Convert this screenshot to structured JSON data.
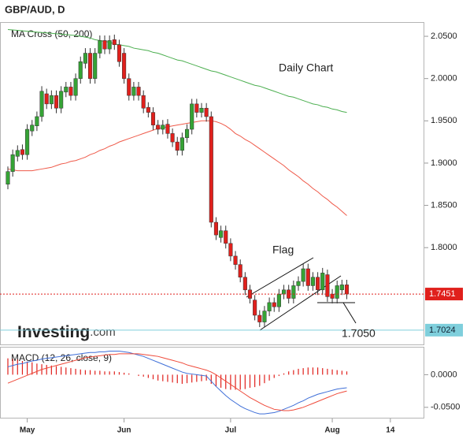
{
  "chart_data": [
    {
      "type": "candlestick",
      "title": "GBP/AUD, D",
      "subtitle": "MA Cross (50, 200)",
      "categories": [
        null,
        null,
        null,
        null,
        "May",
        null,
        null,
        null,
        null,
        null,
        null,
        null,
        null,
        null,
        null,
        null,
        null,
        null,
        null,
        null,
        null,
        null,
        null,
        null,
        "Jun",
        null,
        null,
        null,
        null,
        null,
        null,
        null,
        null,
        null,
        null,
        null,
        null,
        null,
        null,
        null,
        null,
        null,
        null,
        null,
        null,
        null,
        "Jul",
        null,
        null,
        null,
        null,
        null,
        null,
        null,
        null,
        null,
        null,
        null,
        null,
        null,
        null,
        null,
        null,
        null,
        null,
        null,
        null,
        "Aug",
        null,
        null,
        null,
        null,
        null,
        null,
        null,
        null,
        null,
        null,
        null,
        "14",
        null,
        null,
        null,
        null,
        null,
        null
      ],
      "open": [
        1.875,
        1.89,
        1.908,
        1.916,
        1.91,
        1.938,
        1.944,
        1.955,
        1.982,
        1.97,
        1.98,
        1.965,
        1.984,
        1.99,
        1.98,
        2.0,
        2.018,
        2.03,
        2.0,
        2.03,
        2.045,
        2.035,
        2.046,
        2.04,
        2.03,
        2.0,
        1.98,
        1.99,
        1.98,
        1.966,
        1.96,
        1.945,
        1.94,
        1.946,
        1.935,
        1.925,
        1.915,
        1.93,
        1.94,
        1.97,
        1.96,
        1.965,
        1.955,
        1.83,
        1.812,
        1.82,
        1.805,
        1.79,
        1.78,
        1.765,
        1.75,
        1.738,
        1.72,
        1.712,
        1.725,
        1.735,
        1.73,
        1.745,
        1.75,
        1.74,
        1.755,
        1.76,
        1.775,
        1.755,
        1.765,
        1.75,
        1.768,
        1.745,
        1.74,
        1.75,
        1.756,
        null,
        null,
        null,
        null,
        null,
        null,
        null,
        null,
        null,
        null,
        null,
        null,
        null,
        null,
        null
      ],
      "high": [
        1.896,
        1.916,
        1.921,
        1.922,
        1.946,
        1.951,
        1.961,
        1.991,
        1.988,
        1.986,
        1.986,
        1.991,
        1.996,
        1.996,
        2.006,
        2.026,
        2.036,
        2.036,
        2.036,
        2.051,
        2.051,
        2.051,
        2.052,
        2.046,
        2.036,
        2.006,
        1.996,
        1.996,
        1.986,
        1.972,
        1.966,
        1.951,
        1.951,
        1.952,
        1.941,
        1.931,
        1.936,
        1.946,
        1.976,
        1.976,
        1.971,
        1.971,
        1.961,
        1.836,
        1.826,
        1.826,
        1.811,
        1.796,
        1.786,
        1.771,
        1.756,
        1.744,
        1.726,
        1.731,
        1.741,
        1.741,
        1.751,
        1.756,
        1.756,
        1.761,
        1.766,
        1.781,
        1.781,
        1.771,
        1.771,
        1.776,
        1.774,
        1.751,
        1.761,
        1.762,
        1.762,
        null,
        null,
        null,
        null,
        null,
        null,
        null,
        null,
        null,
        null,
        null,
        null,
        null,
        null,
        null
      ],
      "low": [
        1.869,
        1.884,
        1.902,
        1.904,
        1.904,
        1.932,
        1.938,
        1.949,
        1.964,
        1.964,
        1.959,
        1.959,
        1.978,
        1.974,
        1.974,
        1.994,
        2.012,
        1.994,
        1.994,
        2.024,
        2.029,
        2.029,
        2.034,
        2.014,
        1.994,
        1.974,
        1.974,
        1.974,
        1.959,
        1.954,
        1.939,
        1.934,
        1.934,
        1.929,
        1.919,
        1.909,
        1.909,
        1.924,
        1.934,
        1.954,
        1.954,
        1.949,
        1.824,
        1.809,
        1.806,
        1.799,
        1.784,
        1.774,
        1.759,
        1.744,
        1.734,
        1.714,
        1.706,
        1.706,
        1.719,
        1.724,
        1.724,
        1.739,
        1.734,
        1.734,
        1.749,
        1.754,
        1.749,
        1.749,
        1.744,
        1.744,
        1.736,
        1.734,
        1.734,
        1.744,
        1.739,
        null,
        null,
        null,
        null,
        null,
        null,
        null,
        null,
        null,
        null,
        null,
        null,
        null,
        null,
        null
      ],
      "close": [
        1.89,
        1.91,
        1.915,
        1.91,
        1.94,
        1.945,
        1.955,
        1.985,
        1.97,
        1.98,
        1.965,
        1.985,
        1.99,
        1.98,
        2.0,
        2.02,
        2.03,
        2.0,
        2.03,
        2.045,
        2.035,
        2.045,
        2.04,
        2.02,
        2.0,
        1.98,
        1.99,
        1.98,
        1.965,
        1.96,
        1.945,
        1.94,
        1.945,
        1.935,
        1.925,
        1.915,
        1.93,
        1.94,
        1.97,
        1.96,
        1.965,
        1.955,
        1.83,
        1.815,
        1.82,
        1.805,
        1.79,
        1.78,
        1.765,
        1.75,
        1.74,
        1.72,
        1.712,
        1.725,
        1.735,
        1.73,
        1.745,
        1.75,
        1.74,
        1.755,
        1.76,
        1.775,
        1.755,
        1.765,
        1.75,
        1.77,
        1.742,
        1.74,
        1.755,
        1.756,
        1.7451,
        null,
        null,
        null,
        null,
        null,
        null,
        null,
        null,
        null,
        null,
        null,
        null,
        null,
        null,
        null
      ],
      "up_color": "#35a335",
      "down_color": "#e0201c",
      "series": [
        {
          "color": "#4caf50",
          "values": [
            2.058,
            2.0575,
            2.057,
            2.0565,
            2.056,
            2.0555,
            2.055,
            2.0545,
            2.054,
            2.0535,
            2.053,
            2.0525,
            2.052,
            2.0515,
            2.051,
            2.05,
            2.049,
            2.048,
            2.046,
            2.045,
            2.044,
            2.043,
            2.041,
            2.04,
            2.039,
            2.038,
            2.036,
            2.035,
            2.034,
            2.033,
            2.031,
            2.03,
            2.028,
            2.026,
            2.024,
            2.022,
            2.021,
            2.019,
            2.017,
            2.015,
            2.013,
            2.011,
            2.009,
            2.008,
            2.006,
            2.004,
            2.002,
            2.0,
            1.998,
            1.996,
            1.994,
            1.992,
            1.991,
            1.989,
            1.987,
            1.985,
            1.983,
            1.981,
            1.979,
            1.978,
            1.976,
            1.974,
            1.972,
            1.97,
            1.969,
            1.967,
            1.966,
            1.964,
            1.963,
            1.961,
            1.96,
            null,
            null,
            null,
            null,
            null,
            null,
            null,
            null,
            null,
            null,
            null,
            null,
            null,
            null,
            null
          ]
        },
        {
          "color": "#ef5a4a",
          "values": [
            1.893,
            1.892,
            1.891,
            1.891,
            1.891,
            1.891,
            1.892,
            1.893,
            1.894,
            1.895,
            1.897,
            1.899,
            1.9,
            1.902,
            1.903,
            1.905,
            1.907,
            1.91,
            1.912,
            1.915,
            1.917,
            1.92,
            1.922,
            1.925,
            1.927,
            1.929,
            1.931,
            1.933,
            1.935,
            1.937,
            1.939,
            1.941,
            1.942,
            1.943,
            1.944,
            1.945,
            1.946,
            1.947,
            1.948,
            1.949,
            1.95,
            1.95,
            1.95,
            1.949,
            1.947,
            1.944,
            1.94,
            1.935,
            1.932,
            1.928,
            1.925,
            1.921,
            1.917,
            1.913,
            1.909,
            1.905,
            1.901,
            1.897,
            1.892,
            1.888,
            1.884,
            1.879,
            1.875,
            1.87,
            1.866,
            1.861,
            1.857,
            1.852,
            1.848,
            1.843,
            1.838,
            null,
            null,
            null,
            null,
            null,
            null,
            null,
            null,
            null,
            null,
            null,
            null,
            null,
            null,
            null
          ]
        }
      ],
      "ylim": [
        1.6855,
        2.0659
      ],
      "yticks": [
        {
          "value": 2.05,
          "label": "2.0500"
        },
        {
          "value": 2.0,
          "label": "2.0000"
        },
        {
          "value": 1.95,
          "label": "1.9500"
        },
        {
          "value": 1.9,
          "label": "1.9000"
        },
        {
          "value": 1.85,
          "label": "1.8500"
        },
        {
          "value": 1.8,
          "label": "1.8000"
        }
      ],
      "price_lines": [
        {
          "value": 1.7451,
          "color": "#e0201c"
        },
        {
          "value": 1.7024,
          "color": "#7fcfdc"
        }
      ],
      "annotations": [
        "Daily Chart",
        "Flag",
        "1.7050"
      ],
      "brand": "Investing",
      "brand_suffix": ".com"
    },
    {
      "type": "macd",
      "title": "MACD (12, 26, close, 9)",
      "series": [
        {
          "color": "#3f6fd8",
          "values": [
            0.012,
            0.014,
            0.016,
            0.017,
            0.019,
            0.021,
            0.022,
            0.024,
            0.025,
            0.026,
            0.027,
            0.028,
            0.029,
            0.03,
            0.031,
            0.032,
            0.033,
            0.034,
            0.034,
            0.035,
            0.035,
            0.036,
            0.036,
            0.036,
            0.035,
            0.034,
            0.032,
            0.03,
            0.028,
            0.025,
            0.022,
            0.019,
            0.016,
            0.013,
            0.01,
            0.007,
            0.004,
            0.002,
            0.001,
            0.0,
            -0.001,
            -0.002,
            -0.01,
            -0.018,
            -0.025,
            -0.032,
            -0.038,
            -0.043,
            -0.048,
            -0.052,
            -0.055,
            -0.058,
            -0.06,
            -0.06,
            -0.059,
            -0.058,
            -0.056,
            -0.053,
            -0.05,
            -0.047,
            -0.043,
            -0.04,
            -0.036,
            -0.033,
            -0.03,
            -0.028,
            -0.026,
            -0.024,
            -0.022,
            -0.021,
            -0.02,
            null,
            null,
            null,
            null,
            null,
            null,
            null,
            null,
            null,
            null,
            null,
            null,
            null,
            null,
            null
          ]
        },
        {
          "color": "#ef4a3a",
          "values": [
            -0.013,
            -0.01,
            -0.007,
            -0.004,
            -0.001,
            0.002,
            0.005,
            0.008,
            0.01,
            0.012,
            0.014,
            0.016,
            0.018,
            0.02,
            0.022,
            0.024,
            0.026,
            0.027,
            0.028,
            0.029,
            0.03,
            0.031,
            0.031,
            0.032,
            0.032,
            0.032,
            0.032,
            0.032,
            0.031,
            0.03,
            0.029,
            0.028,
            0.026,
            0.024,
            0.022,
            0.02,
            0.018,
            0.015,
            0.013,
            0.011,
            0.009,
            0.007,
            0.004,
            0.0,
            -0.005,
            -0.01,
            -0.015,
            -0.02,
            -0.025,
            -0.03,
            -0.035,
            -0.039,
            -0.043,
            -0.047,
            -0.05,
            -0.053,
            -0.054,
            -0.055,
            -0.055,
            -0.054,
            -0.052,
            -0.05,
            -0.047,
            -0.044,
            -0.041,
            -0.038,
            -0.035,
            -0.032,
            -0.029,
            -0.027,
            -0.025,
            null,
            null,
            null,
            null,
            null,
            null,
            null,
            null,
            null,
            null,
            null,
            null,
            null,
            null,
            null
          ]
        }
      ],
      "histogram": {
        "color": "#e0201c",
        "values": [
          0.025,
          0.024,
          0.023,
          0.021,
          0.02,
          0.019,
          0.017,
          0.016,
          0.015,
          0.014,
          0.013,
          0.012,
          0.011,
          0.01,
          0.009,
          0.008,
          0.007,
          0.007,
          0.006,
          0.006,
          0.005,
          0.005,
          0.005,
          0.004,
          0.003,
          0.002,
          0.0,
          -0.002,
          -0.003,
          -0.005,
          -0.007,
          -0.009,
          -0.01,
          -0.011,
          -0.012,
          -0.013,
          -0.014,
          -0.013,
          -0.012,
          -0.011,
          -0.01,
          -0.009,
          -0.014,
          -0.018,
          -0.02,
          -0.022,
          -0.023,
          -0.023,
          -0.023,
          -0.022,
          -0.02,
          -0.019,
          -0.017,
          -0.013,
          -0.009,
          -0.005,
          -0.002,
          0.002,
          0.005,
          0.007,
          0.009,
          0.01,
          0.011,
          0.011,
          0.011,
          0.01,
          0.009,
          0.008,
          0.007,
          0.006,
          0.005,
          null,
          null,
          null,
          null,
          null,
          null,
          null,
          null,
          null,
          null,
          null,
          null,
          null,
          null,
          null
        ]
      },
      "ylim": [
        -0.0659,
        0.0415
      ],
      "yticks": [
        {
          "value": 0,
          "label": "0.0000"
        },
        {
          "value": -0.05,
          "label": "-0.0500"
        }
      ]
    }
  ]
}
